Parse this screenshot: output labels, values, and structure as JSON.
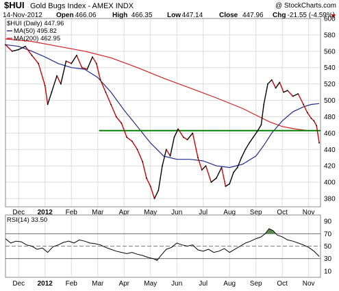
{
  "header": {
    "symbol": "$HUI",
    "name": "Gold Bugs Index - AMEX INDX",
    "watermark": "@ StockCharts.com",
    "date": "14-Nov-2012",
    "open_label": "Open",
    "open": "466.06",
    "high_label": "High",
    "high": "466.35",
    "low_label": "Low",
    "low": "447.14",
    "close_label": "Close",
    "close": "447.96",
    "chg_label": "Chg",
    "chg": "-21.55 (-4.59%)"
  },
  "legend": {
    "price": "$HUI (Daily) 447.96",
    "ma50": "MA(50) 495.82",
    "ma200": "MA(200) 462.95",
    "rsi": "RSI(14) 33.50"
  },
  "colors": {
    "price_up": "#000000",
    "price_down": "#cc0000",
    "ma50": "#1f2a8a",
    "ma200": "#d02020",
    "support": "#008000",
    "rsi_line": "#000000",
    "rsi_overbought": "#5a8a50",
    "rsi_oversold": "#8a6a8a"
  },
  "chart_data": {
    "type": "line",
    "x_labels": [
      {
        "label": "Dec",
        "m": 0.0
      },
      {
        "label": "2012",
        "m": 1.0
      },
      {
        "label": "Feb",
        "m": 2.0
      },
      {
        "label": "Mar",
        "m": 3.0
      },
      {
        "label": "Apr",
        "m": 4.0
      },
      {
        "label": "May",
        "m": 5.0
      },
      {
        "label": "Jun",
        "m": 6.0
      },
      {
        "label": "Jul",
        "m": 7.0
      },
      {
        "label": "Aug",
        "m": 8.0
      },
      {
        "label": "Sep",
        "m": 9.0
      },
      {
        "label": "Oct",
        "m": 10.0
      },
      {
        "label": "Nov",
        "m": 11.0
      }
    ],
    "x_range": [
      -0.5,
      11.45
    ],
    "price_ylim": [
      370,
      600
    ],
    "price_ticks": [
      380,
      400,
      420,
      440,
      460,
      480,
      500,
      520,
      540,
      560,
      580,
      600
    ],
    "support_level": 463,
    "price": [
      [
        -0.5,
        568
      ],
      [
        -0.25,
        560
      ],
      [
        0.0,
        562
      ],
      [
        0.25,
        566
      ],
      [
        0.5,
        555
      ],
      [
        0.75,
        545
      ],
      [
        1.0,
        518
      ],
      [
        1.1,
        495
      ],
      [
        1.25,
        510
      ],
      [
        1.45,
        530
      ],
      [
        1.6,
        520
      ],
      [
        1.8,
        548
      ],
      [
        2.0,
        545
      ],
      [
        2.2,
        555
      ],
      [
        2.4,
        540
      ],
      [
        2.6,
        538
      ],
      [
        2.8,
        553
      ],
      [
        2.95,
        545
      ],
      [
        3.1,
        525
      ],
      [
        3.3,
        510
      ],
      [
        3.5,
        495
      ],
      [
        3.7,
        480
      ],
      [
        3.9,
        472
      ],
      [
        4.1,
        455
      ],
      [
        4.3,
        450
      ],
      [
        4.5,
        440
      ],
      [
        4.7,
        425
      ],
      [
        4.85,
        405
      ],
      [
        5.0,
        395
      ],
      [
        5.15,
        380
      ],
      [
        5.3,
        390
      ],
      [
        5.45,
        420
      ],
      [
        5.6,
        440
      ],
      [
        5.75,
        432
      ],
      [
        5.9,
        455
      ],
      [
        6.05,
        465
      ],
      [
        6.25,
        455
      ],
      [
        6.4,
        452
      ],
      [
        6.6,
        460
      ],
      [
        6.8,
        430
      ],
      [
        6.95,
        415
      ],
      [
        7.1,
        420
      ],
      [
        7.3,
        400
      ],
      [
        7.5,
        405
      ],
      [
        7.7,
        418
      ],
      [
        7.85,
        395
      ],
      [
        8.0,
        398
      ],
      [
        8.15,
        412
      ],
      [
        8.3,
        418
      ],
      [
        8.45,
        430
      ],
      [
        8.6,
        440
      ],
      [
        8.75,
        448
      ],
      [
        8.9,
        455
      ],
      [
        9.05,
        462
      ],
      [
        9.2,
        470
      ],
      [
        9.3,
        495
      ],
      [
        9.45,
        520
      ],
      [
        9.6,
        525
      ],
      [
        9.75,
        515
      ],
      [
        9.9,
        522
      ],
      [
        10.05,
        510
      ],
      [
        10.2,
        512
      ],
      [
        10.4,
        505
      ],
      [
        10.6,
        508
      ],
      [
        10.8,
        495
      ],
      [
        10.95,
        485
      ],
      [
        11.1,
        478
      ],
      [
        11.2,
        475
      ],
      [
        11.3,
        469
      ],
      [
        11.4,
        448
      ]
    ],
    "ma50": [
      [
        -0.5,
        568
      ],
      [
        0.0,
        566
      ],
      [
        0.5,
        560
      ],
      [
        1.0,
        553
      ],
      [
        1.5,
        545
      ],
      [
        2.0,
        540
      ],
      [
        2.5,
        538
      ],
      [
        3.0,
        528
      ],
      [
        3.5,
        510
      ],
      [
        4.0,
        488
      ],
      [
        4.5,
        468
      ],
      [
        5.0,
        448
      ],
      [
        5.5,
        432
      ],
      [
        6.0,
        428
      ],
      [
        6.5,
        428
      ],
      [
        7.0,
        426
      ],
      [
        7.5,
        420
      ],
      [
        8.0,
        418
      ],
      [
        8.5,
        422
      ],
      [
        9.0,
        432
      ],
      [
        9.3,
        445
      ],
      [
        9.6,
        460
      ],
      [
        10.0,
        475
      ],
      [
        10.4,
        486
      ],
      [
        10.8,
        492
      ],
      [
        11.1,
        495
      ],
      [
        11.4,
        496
      ]
    ],
    "ma200": [
      [
        -0.5,
        575
      ],
      [
        0.5,
        572
      ],
      [
        1.5,
        566
      ],
      [
        2.5,
        560
      ],
      [
        3.5,
        552
      ],
      [
        4.5,
        540
      ],
      [
        5.5,
        527
      ],
      [
        6.5,
        515
      ],
      [
        7.5,
        503
      ],
      [
        8.5,
        490
      ],
      [
        9.0,
        482
      ],
      [
        9.5,
        474
      ],
      [
        10.0,
        468
      ],
      [
        10.5,
        465
      ],
      [
        11.0,
        463
      ],
      [
        11.4,
        463
      ]
    ],
    "rsi_ylim": [
      0,
      100
    ],
    "rsi_ticks": [
      10,
      30,
      50,
      70,
      90
    ],
    "rsi_levels": [
      30,
      70
    ],
    "rsi": [
      [
        -0.5,
        62
      ],
      [
        -0.3,
        55
      ],
      [
        -0.1,
        58
      ],
      [
        0.1,
        57
      ],
      [
        0.3,
        52
      ],
      [
        0.5,
        50
      ],
      [
        0.7,
        45
      ],
      [
        0.9,
        47
      ],
      [
        1.1,
        40
      ],
      [
        1.3,
        49
      ],
      [
        1.5,
        52
      ],
      [
        1.7,
        56
      ],
      [
        1.9,
        58
      ],
      [
        2.1,
        55
      ],
      [
        2.3,
        60
      ],
      [
        2.5,
        58
      ],
      [
        2.7,
        55
      ],
      [
        2.9,
        54
      ],
      [
        3.1,
        52
      ],
      [
        3.3,
        48
      ],
      [
        3.5,
        45
      ],
      [
        3.7,
        42
      ],
      [
        3.9,
        40
      ],
      [
        4.1,
        38
      ],
      [
        4.3,
        40
      ],
      [
        4.5,
        37
      ],
      [
        4.7,
        35
      ],
      [
        4.9,
        32
      ],
      [
        5.1,
        30
      ],
      [
        5.25,
        27
      ],
      [
        5.4,
        35
      ],
      [
        5.6,
        45
      ],
      [
        5.8,
        48
      ],
      [
        6.0,
        55
      ],
      [
        6.2,
        52
      ],
      [
        6.4,
        50
      ],
      [
        6.6,
        52
      ],
      [
        6.8,
        44
      ],
      [
        7.0,
        42
      ],
      [
        7.2,
        45
      ],
      [
        7.4,
        40
      ],
      [
        7.6,
        42
      ],
      [
        7.8,
        46
      ],
      [
        8.0,
        40
      ],
      [
        8.2,
        45
      ],
      [
        8.4,
        50
      ],
      [
        8.6,
        55
      ],
      [
        8.8,
        58
      ],
      [
        9.0,
        62
      ],
      [
        9.2,
        65
      ],
      [
        9.35,
        70
      ],
      [
        9.5,
        78
      ],
      [
        9.65,
        75
      ],
      [
        9.8,
        68
      ],
      [
        10.0,
        65
      ],
      [
        10.2,
        60
      ],
      [
        10.4,
        58
      ],
      [
        10.6,
        55
      ],
      [
        10.8,
        52
      ],
      [
        11.0,
        48
      ],
      [
        11.2,
        42
      ],
      [
        11.4,
        33.5
      ]
    ]
  }
}
